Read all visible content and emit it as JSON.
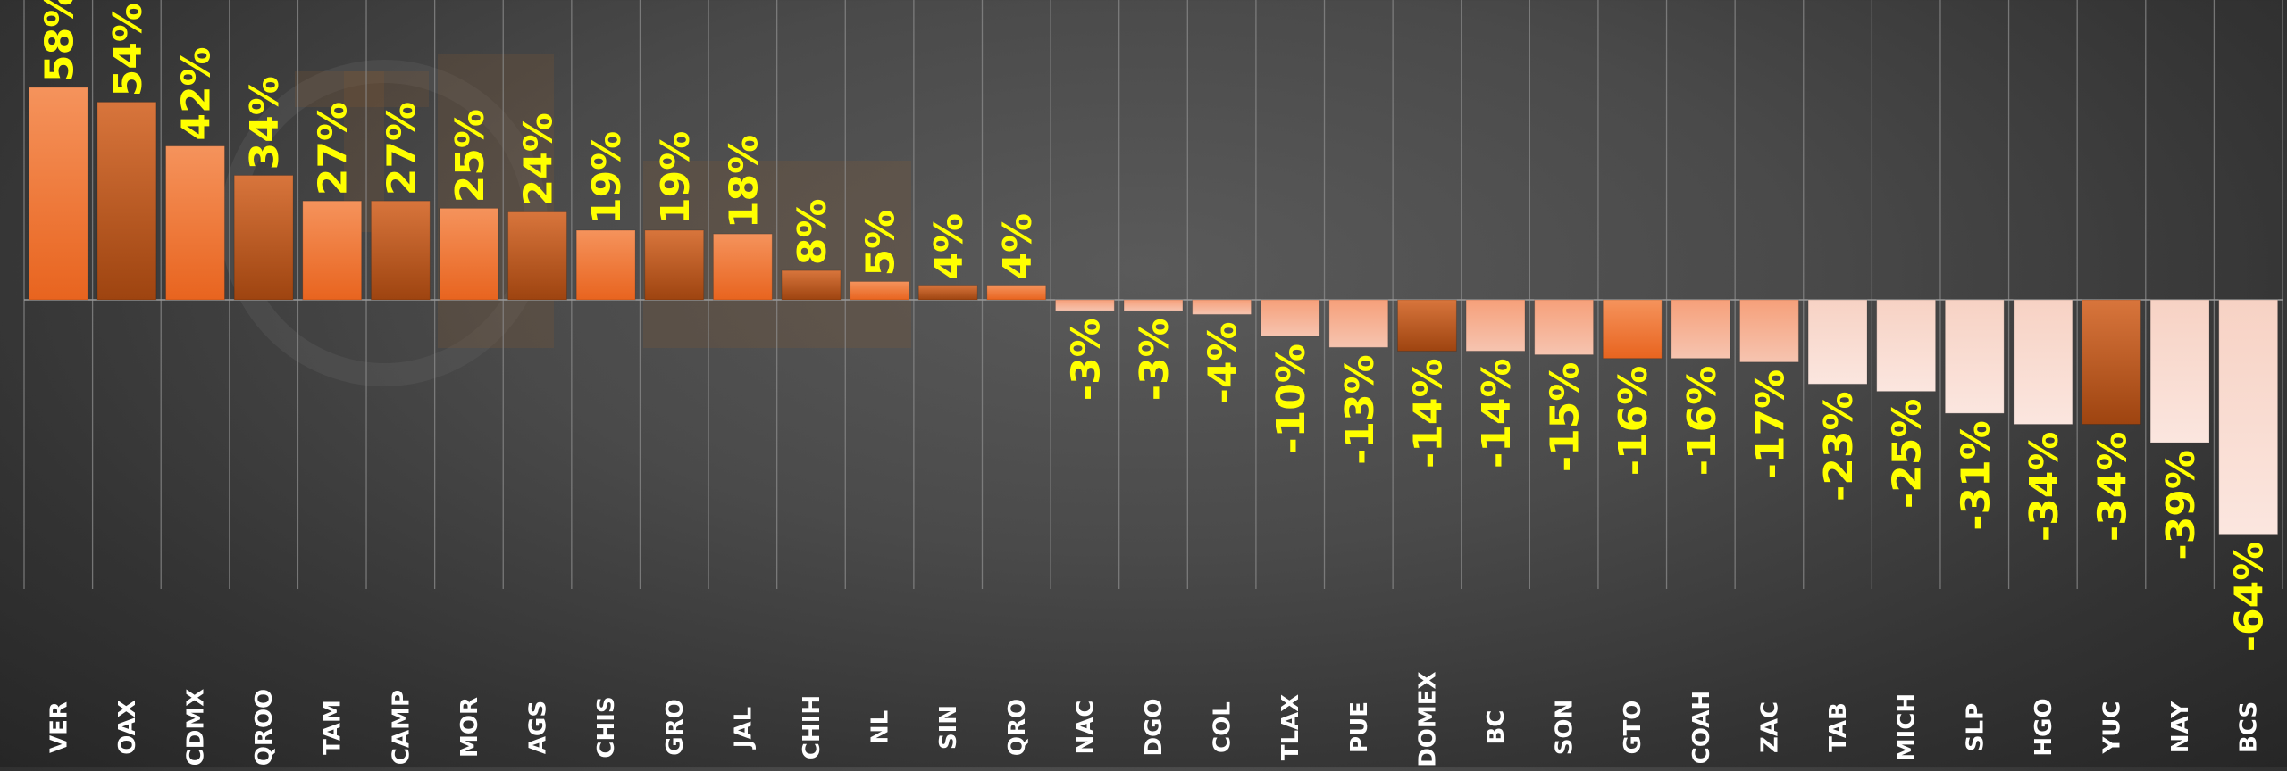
{
  "chart_data": {
    "type": "bar",
    "title": "",
    "xlabel": "",
    "ylabel": "",
    "ylim": [
      -64,
      58
    ],
    "grid": true,
    "legend": "none",
    "categories": [
      "VER",
      "OAX",
      "CDMX",
      "QROO",
      "TAM",
      "CAMP",
      "MOR",
      "AGS",
      "CHIS",
      "GRO",
      "JAL",
      "CHIH",
      "NL",
      "SIN",
      "QRO",
      "NAC",
      "DGO",
      "COL",
      "TLAX",
      "PUE",
      "EDOMEX",
      "BC",
      "SON",
      "GTO",
      "COAH",
      "ZAC",
      "TAB",
      "MICH",
      "SLP",
      "HGO",
      "YUC",
      "NAY",
      "BCS"
    ],
    "values": [
      58,
      54,
      42,
      34,
      27,
      27,
      25,
      24,
      19,
      19,
      18,
      8,
      5,
      4,
      4,
      -3,
      -3,
      -4,
      -10,
      -13,
      -14,
      -14,
      -15,
      -16,
      -16,
      -17,
      -23,
      -25,
      -31,
      -34,
      -34,
      -39,
      -64
    ],
    "data_labels": [
      "58%",
      "54%",
      "42%",
      "34%",
      "27%",
      "27%",
      "25%",
      "24%",
      "19%",
      "19%",
      "18%",
      "8%",
      "5%",
      "4%",
      "4%",
      "-3%",
      "-3%",
      "-4%",
      "-10%",
      "-13%",
      "-14%",
      "-14%",
      "-15%",
      "-16%",
      "-16%",
      "-17%",
      "-23%",
      "-25%",
      "-31%",
      "-34%",
      "-34%",
      "-39%",
      "-64%"
    ],
    "bar_styles": [
      "a",
      "b",
      "a",
      "b",
      "a",
      "b",
      "a",
      "b",
      "a",
      "b",
      "a",
      "b",
      "a",
      "b",
      "a",
      "p",
      "p",
      "p",
      "p",
      "p",
      "b",
      "p",
      "p",
      "a",
      "p",
      "p",
      "l",
      "l",
      "l",
      "l",
      "b",
      "l",
      "l"
    ]
  },
  "colors": {
    "label": "#ffff00",
    "category_text": "#ffffff",
    "bar_orange_light": "#f7894a",
    "bar_orange_dark": "#cc5a1c",
    "bar_pink": "#f4b8a0",
    "bar_pale": "#f8dcd2"
  }
}
